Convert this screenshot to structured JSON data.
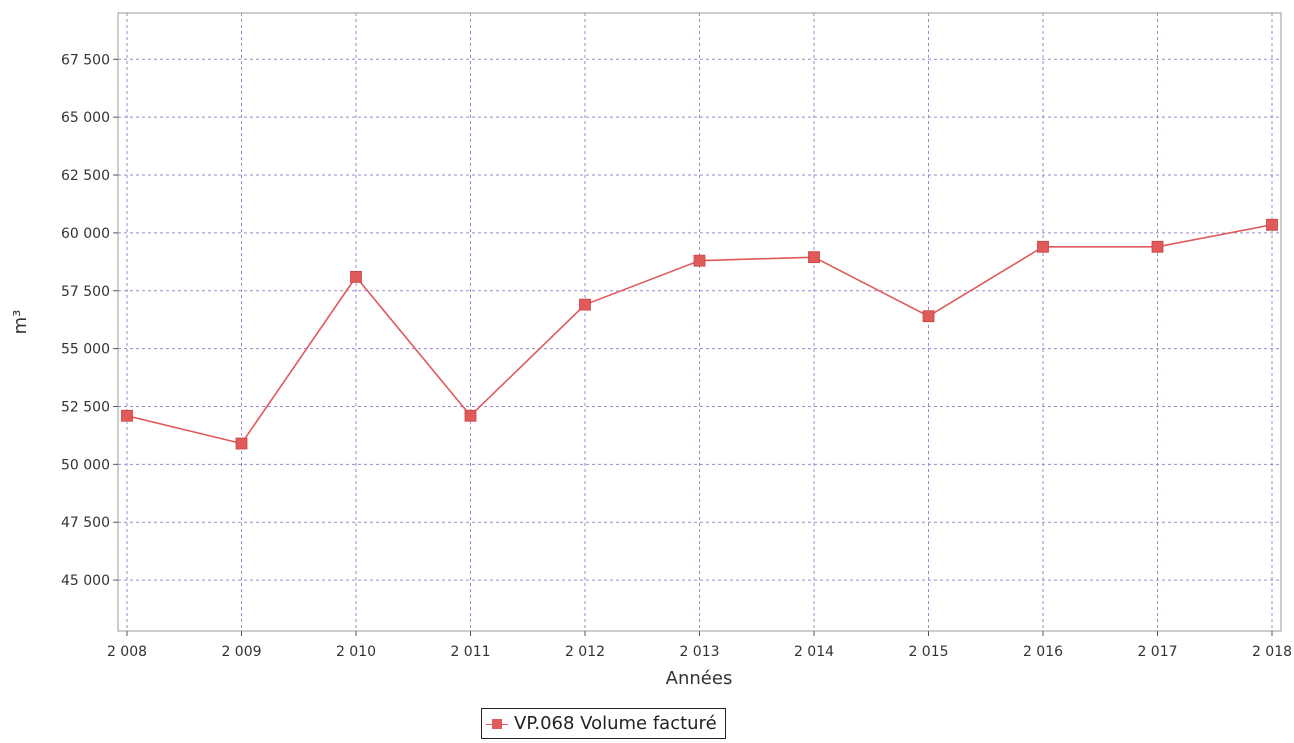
{
  "chart_data": {
    "type": "line",
    "title": "",
    "xlabel": "Années",
    "ylabel": "m³",
    "categories": [
      "2 008",
      "2 009",
      "2 010",
      "2 011",
      "2 012",
      "2 013",
      "2 014",
      "2 015",
      "2 016",
      "2 017",
      "2 018"
    ],
    "series": [
      {
        "name": "VP.068 Volume facturé",
        "color": "#e05a5a",
        "values": [
          52100,
          50900,
          58100,
          52100,
          56900,
          58800,
          58950,
          56400,
          59400,
          59400,
          60350
        ]
      }
    ],
    "ylim": [
      42800,
      69500
    ],
    "yticks": [
      45000,
      47500,
      50000,
      52500,
      55000,
      57500,
      60000,
      62500,
      65000,
      67500
    ],
    "ytick_labels": [
      "45 000",
      "47 500",
      "50 000",
      "52 500",
      "55 000",
      "57 500",
      "60 000",
      "62 500",
      "65 000",
      "67 500"
    ],
    "grid": true,
    "legend_position": "bottom-center"
  }
}
